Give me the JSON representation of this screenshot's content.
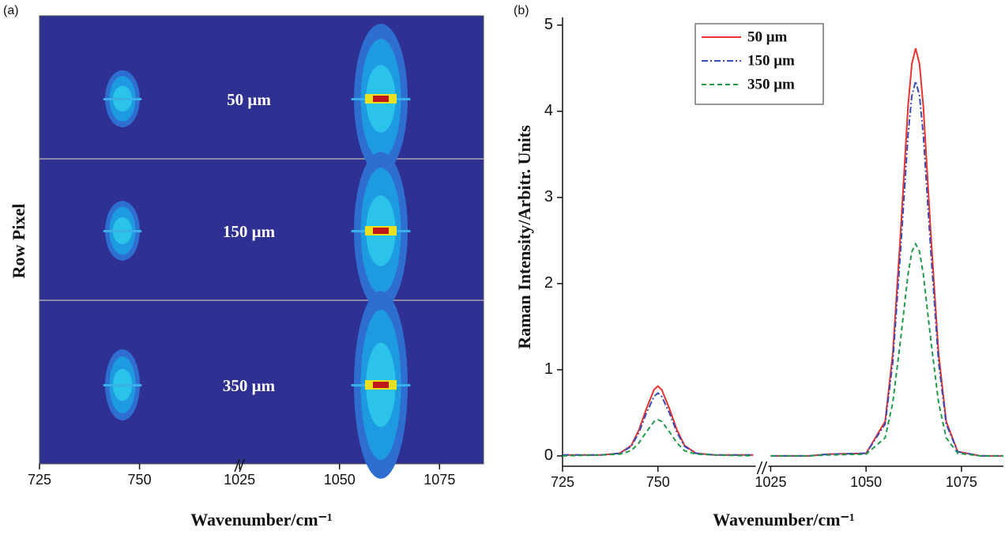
{
  "chart_data": [
    {
      "type": "image",
      "panel_label": "(a)",
      "ylabel": "Row Pixel",
      "xlabel": "Wavenumber/cm⁻¹",
      "labels": [
        "50 μm",
        "150 μm",
        "350 μm"
      ],
      "xlim": [
        725,
        1086
      ],
      "axis_break": [
        775,
        1025
      ],
      "xticks": [
        725,
        750,
        1025,
        1050,
        1075
      ]
    },
    {
      "type": "line",
      "panel_label": "(b)",
      "ylabel": "Raman Intensity/Arbitr. Units",
      "xlabel": "Wavenumber/cm⁻¹",
      "xlim": [
        725,
        1086
      ],
      "axis_break": [
        775,
        1025
      ],
      "xticks": [
        725,
        750,
        1025,
        1050,
        1075
      ],
      "ylim": [
        -0.12,
        5.09
      ],
      "yticks": [
        0,
        1,
        2,
        3,
        4,
        5
      ],
      "legend": "top-center",
      "x": [
        725,
        735,
        740,
        743,
        745,
        747,
        749,
        750,
        751,
        753,
        755,
        757,
        760,
        765,
        775,
        1025,
        1035,
        1040,
        1050,
        1055,
        1057,
        1059,
        1061,
        1062,
        1063,
        1064,
        1065,
        1067,
        1069,
        1071,
        1074,
        1080,
        1086
      ],
      "series": [
        {
          "name": "50 μm",
          "color": "#e8332e",
          "dash": "solid",
          "values": [
            0.01,
            0.01,
            0.03,
            0.12,
            0.3,
            0.55,
            0.77,
            0.81,
            0.77,
            0.55,
            0.3,
            0.12,
            0.03,
            0.01,
            0.01,
            0,
            0,
            0.02,
            0.03,
            0.4,
            1.19,
            2.55,
            4.06,
            4.55,
            4.73,
            4.55,
            4.06,
            2.55,
            1.19,
            0.4,
            0.05,
            0,
            0
          ]
        },
        {
          "name": "150 μm",
          "color": "#3b4bb8",
          "dash": "dashdot",
          "values": [
            0.01,
            0.01,
            0.03,
            0.11,
            0.27,
            0.5,
            0.69,
            0.73,
            0.69,
            0.5,
            0.27,
            0.11,
            0.03,
            0.01,
            0.01,
            0,
            0,
            0.02,
            0.03,
            0.37,
            1.09,
            2.35,
            3.73,
            4.18,
            4.35,
            4.18,
            3.73,
            2.35,
            1.09,
            0.37,
            0.05,
            0,
            0
          ]
        },
        {
          "name": "350 μm",
          "color": "#1f9a4a",
          "dash": "dashed",
          "values": [
            0,
            0.01,
            0.02,
            0.06,
            0.15,
            0.28,
            0.4,
            0.42,
            0.4,
            0.28,
            0.15,
            0.06,
            0.02,
            0.01,
            0,
            0,
            0,
            0.01,
            0.02,
            0.21,
            0.62,
            1.33,
            2.11,
            2.37,
            2.46,
            2.37,
            2.11,
            1.33,
            0.62,
            0.21,
            0.03,
            0,
            0
          ]
        }
      ]
    }
  ]
}
